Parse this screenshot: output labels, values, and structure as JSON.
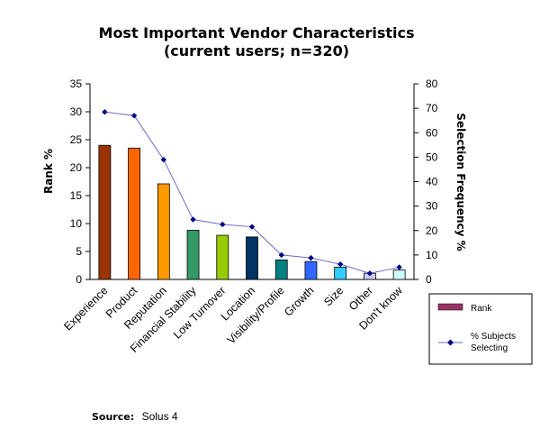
{
  "chart_data": {
    "type": "bar",
    "title": "Most Important Vendor Characteristics",
    "subtitle": "(current users; n=320)",
    "categories": [
      "Experience",
      "Product",
      "Reputation",
      "Financial Stability",
      "Low Turnover",
      "Location",
      "Visibility/Profile",
      "Growth",
      "Size",
      "Other",
      "Don't know"
    ],
    "ylabel": "Rank %",
    "y2label": "Selection Frequency %",
    "ylim": [
      0,
      35
    ],
    "y2lim": [
      0,
      80
    ],
    "yticks": [
      "0",
      "5",
      "10",
      "15",
      "20",
      "25",
      "30",
      "35"
    ],
    "y2ticks": [
      "0",
      "10",
      "20",
      "30",
      "40",
      "50",
      "60",
      "70",
      "80"
    ],
    "grid": false,
    "legend_position": "right",
    "series": [
      {
        "name": "Rank",
        "type": "bar",
        "axis": "left",
        "values": [
          24.0,
          23.5,
          17.1,
          8.8,
          7.9,
          7.6,
          3.5,
          3.2,
          2.2,
          1.1,
          1.7
        ],
        "colors": [
          "#993300",
          "#ff6600",
          "#ff9900",
          "#339966",
          "#99cc00",
          "#003366",
          "#008080",
          "#3366ff",
          "#33ccff",
          "#ccccff",
          "#ccffff"
        ],
        "legend_color": "#993366"
      },
      {
        "name": "% Subjects Selecting",
        "type": "line",
        "axis": "right",
        "values": [
          68.5,
          67,
          49,
          24.5,
          22.5,
          21.5,
          10,
          8.8,
          6.2,
          2.5,
          5
        ],
        "color": "#000080",
        "line_color": "#6a6ac8"
      }
    ]
  },
  "source": {
    "label": "Source:",
    "value": "Solus 4"
  }
}
